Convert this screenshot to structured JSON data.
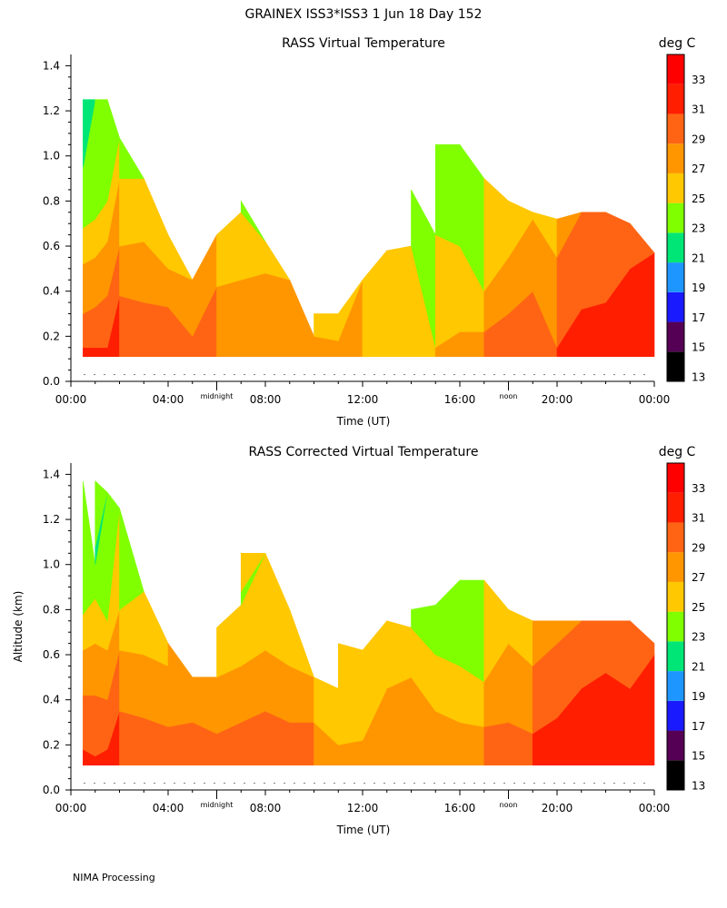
{
  "header": {
    "title": "GRAINEX ISS3*ISS3    1 Jun 18 Day 152"
  },
  "footer": {
    "text": "NIMA Processing"
  },
  "colorbar": {
    "unit_label": "deg C",
    "ticks": [
      "33",
      "31",
      "29",
      "27",
      "25",
      "23",
      "21",
      "19",
      "17",
      "15",
      "13"
    ],
    "colors": [
      "#000000",
      "#550055",
      "#1a1aff",
      "#1e96ff",
      "#00e676",
      "#7fff00",
      "#ffc800",
      "#ff9600",
      "#ff6414",
      "#ff1e00",
      "#ff0000"
    ]
  },
  "axes": {
    "x_ticks": [
      "00:00",
      "04:00",
      "08:00",
      "12:00",
      "16:00",
      "20:00",
      "00:00"
    ],
    "x_label": "Time (UT)",
    "y_ticks": [
      "1.4",
      "1.2",
      "1.0",
      "0.8",
      "0.6",
      "0.4",
      "0.2",
      "0.0"
    ],
    "y_label": "Altitude (km)",
    "markers": [
      "midnight",
      "noon"
    ]
  },
  "chart_data": [
    {
      "type": "heatmap",
      "title": "RASS Virtual Temperature",
      "xlabel": "Time (UT)",
      "ylabel": "",
      "xlim": [
        0,
        24
      ],
      "ylim": [
        0,
        1.45
      ],
      "x_unit": "hours UT",
      "colorbar_unit": "deg C",
      "levels": [
        13,
        15,
        17,
        19,
        21,
        23,
        25,
        27,
        29,
        31,
        33,
        35
      ],
      "profiles": [
        {
          "t": 0.5,
          "top": 1.25,
          "layers": [
            [
              0.15,
              31
            ],
            [
              0.3,
              29
            ],
            [
              0.52,
              27
            ],
            [
              0.68,
              25
            ],
            [
              0.95,
              23
            ],
            [
              1.25,
              21
            ]
          ]
        },
        {
          "t": 1.0,
          "top": 1.25,
          "layers": [
            [
              0.15,
              31
            ],
            [
              0.33,
              29
            ],
            [
              0.55,
              27
            ],
            [
              0.72,
              25
            ],
            [
              1.25,
              23
            ]
          ]
        },
        {
          "t": 1.5,
          "top": 1.25,
          "layers": [
            [
              0.15,
              31
            ],
            [
              0.38,
              29
            ],
            [
              0.62,
              27
            ],
            [
              0.8,
              25
            ],
            [
              1.25,
              23
            ]
          ]
        },
        {
          "t": 2.0,
          "top": 1.08,
          "layers": [
            [
              0.38,
              29
            ],
            [
              0.6,
              27
            ],
            [
              0.9,
              25
            ],
            [
              1.08,
              23
            ]
          ]
        },
        {
          "t": 3.0,
          "top": 0.9,
          "layers": [
            [
              0.35,
              29
            ],
            [
              0.62,
              27
            ],
            [
              0.9,
              25
            ]
          ]
        },
        {
          "t": 4.0,
          "top": 0.65,
          "layers": [
            [
              0.33,
              29
            ],
            [
              0.5,
              27
            ],
            [
              0.65,
              25
            ]
          ]
        },
        {
          "t": 5.0,
          "top": 0.45,
          "layers": [
            [
              0.2,
              29
            ],
            [
              0.45,
              27
            ]
          ]
        },
        {
          "t": 6.0,
          "top": 0.65,
          "layers": [
            [
              0.42,
              27
            ],
            [
              0.65,
              25
            ]
          ]
        },
        {
          "t": 7.0,
          "top": 0.8,
          "layers": [
            [
              0.45,
              27
            ],
            [
              0.75,
              25
            ],
            [
              0.8,
              23
            ]
          ]
        },
        {
          "t": 8.0,
          "top": 0.62,
          "layers": [
            [
              0.48,
              27
            ],
            [
              0.62,
              25
            ]
          ]
        },
        {
          "t": 9.0,
          "top": 0.45,
          "layers": [
            [
              0.45,
              27
            ]
          ]
        },
        {
          "t": 10.0,
          "top": 0.3,
          "layers": [
            [
              0.2,
              27
            ],
            [
              0.3,
              25
            ]
          ]
        },
        {
          "t": 11.0,
          "top": 0.3,
          "layers": [
            [
              0.18,
              27
            ],
            [
              0.3,
              25
            ]
          ]
        },
        {
          "t": 12.0,
          "top": 0.45,
          "layers": [
            [
              0.45,
              25
            ]
          ]
        },
        {
          "t": 13.0,
          "top": 0.58,
          "layers": [
            [
              0.58,
              25
            ]
          ]
        },
        {
          "t": 14.0,
          "top": 0.85,
          "layers": [
            [
              0.6,
              25
            ],
            [
              0.85,
              23
            ]
          ]
        },
        {
          "t": 15.0,
          "top": 1.05,
          "layers": [
            [
              0.15,
              27
            ],
            [
              0.65,
              25
            ],
            [
              1.05,
              23
            ]
          ]
        },
        {
          "t": 16.0,
          "top": 1.05,
          "layers": [
            [
              0.22,
              27
            ],
            [
              0.6,
              25
            ],
            [
              1.05,
              23
            ]
          ]
        },
        {
          "t": 17.0,
          "top": 0.9,
          "layers": [
            [
              0.22,
              29
            ],
            [
              0.4,
              27
            ],
            [
              0.9,
              25
            ]
          ]
        },
        {
          "t": 18.0,
          "top": 0.8,
          "layers": [
            [
              0.3,
              29
            ],
            [
              0.55,
              27
            ],
            [
              0.8,
              25
            ]
          ]
        },
        {
          "t": 19.0,
          "top": 0.75,
          "layers": [
            [
              0.4,
              29
            ],
            [
              0.72,
              27
            ],
            [
              0.75,
              25
            ]
          ]
        },
        {
          "t": 20.0,
          "top": 0.72,
          "layers": [
            [
              0.15,
              31
            ],
            [
              0.55,
              29
            ],
            [
              0.72,
              27
            ]
          ]
        },
        {
          "t": 21.0,
          "top": 0.75,
          "layers": [
            [
              0.32,
              31
            ],
            [
              0.75,
              29
            ]
          ]
        },
        {
          "t": 22.0,
          "top": 0.75,
          "layers": [
            [
              0.35,
              31
            ],
            [
              0.75,
              29
            ]
          ]
        },
        {
          "t": 23.0,
          "top": 0.7,
          "layers": [
            [
              0.5,
              31
            ],
            [
              0.7,
              29
            ]
          ]
        },
        {
          "t": 24.0,
          "top": 0.57,
          "layers": [
            [
              0.57,
              31
            ]
          ]
        }
      ]
    },
    {
      "type": "heatmap",
      "title": "RASS Corrected Virtual Temperature",
      "xlabel": "Time (UT)",
      "ylabel": "Altitude (km)",
      "xlim": [
        0,
        24
      ],
      "ylim": [
        0,
        1.45
      ],
      "x_unit": "hours UT",
      "colorbar_unit": "deg C",
      "levels": [
        13,
        15,
        17,
        19,
        21,
        23,
        25,
        27,
        29,
        31,
        33,
        35
      ],
      "profiles": [
        {
          "t": 0.5,
          "top": 1.37,
          "layers": [
            [
              0.18,
              31
            ],
            [
              0.42,
              29
            ],
            [
              0.62,
              27
            ],
            [
              0.78,
              25
            ],
            [
              1.37,
              23
            ]
          ]
        },
        {
          "t": 1.0,
          "top": 1.37,
          "layers": [
            [
              0.15,
              31
            ],
            [
              0.42,
              29
            ],
            [
              0.65,
              27
            ],
            [
              0.85,
              25
            ],
            [
              1.0,
              23
            ],
            [
              1.08,
              21
            ],
            [
              1.37,
              23
            ]
          ]
        },
        {
          "t": 1.5,
          "top": 1.32,
          "layers": [
            [
              0.18,
              31
            ],
            [
              0.4,
              29
            ],
            [
              0.62,
              27
            ],
            [
              0.75,
              25
            ],
            [
              1.32,
              23
            ]
          ]
        },
        {
          "t": 2.0,
          "top": 1.25,
          "layers": [
            [
              0.35,
              29
            ],
            [
              0.62,
              27
            ],
            [
              0.8,
              25
            ],
            [
              1.25,
              23
            ]
          ]
        },
        {
          "t": 3.0,
          "top": 0.88,
          "layers": [
            [
              0.32,
              29
            ],
            [
              0.6,
              27
            ],
            [
              0.88,
              25
            ]
          ]
        },
        {
          "t": 4.0,
          "top": 0.65,
          "layers": [
            [
              0.28,
              29
            ],
            [
              0.55,
              27
            ],
            [
              0.65,
              27
            ]
          ]
        },
        {
          "t": 5.0,
          "top": 0.5,
          "layers": [
            [
              0.3,
              29
            ],
            [
              0.5,
              27
            ]
          ]
        },
        {
          "t": 6.0,
          "top": 0.72,
          "layers": [
            [
              0.25,
              29
            ],
            [
              0.5,
              27
            ],
            [
              0.72,
              25
            ]
          ]
        },
        {
          "t": 7.0,
          "top": 1.05,
          "layers": [
            [
              0.3,
              29
            ],
            [
              0.55,
              27
            ],
            [
              0.82,
              25
            ],
            [
              0.88,
              23
            ],
            [
              1.05,
              25
            ]
          ]
        },
        {
          "t": 8.0,
          "top": 1.05,
          "layers": [
            [
              0.35,
              29
            ],
            [
              0.62,
              27
            ],
            [
              1.05,
              25
            ]
          ]
        },
        {
          "t": 9.0,
          "top": 0.8,
          "layers": [
            [
              0.3,
              29
            ],
            [
              0.55,
              27
            ],
            [
              0.8,
              25
            ]
          ]
        },
        {
          "t": 10.0,
          "top": 0.5,
          "layers": [
            [
              0.3,
              27
            ],
            [
              0.5,
              25
            ]
          ]
        },
        {
          "t": 11.0,
          "top": 0.65,
          "layers": [
            [
              0.2,
              27
            ],
            [
              0.45,
              25
            ],
            [
              0.65,
              25
            ]
          ]
        },
        {
          "t": 12.0,
          "top": 0.62,
          "layers": [
            [
              0.22,
              27
            ],
            [
              0.62,
              25
            ]
          ]
        },
        {
          "t": 13.0,
          "top": 0.75,
          "layers": [
            [
              0.45,
              27
            ],
            [
              0.75,
              25
            ]
          ]
        },
        {
          "t": 14.0,
          "top": 0.8,
          "layers": [
            [
              0.5,
              27
            ],
            [
              0.72,
              25
            ],
            [
              0.8,
              23
            ]
          ]
        },
        {
          "t": 15.0,
          "top": 0.82,
          "layers": [
            [
              0.35,
              27
            ],
            [
              0.6,
              25
            ],
            [
              0.82,
              23
            ]
          ]
        },
        {
          "t": 16.0,
          "top": 0.93,
          "layers": [
            [
              0.3,
              27
            ],
            [
              0.55,
              25
            ],
            [
              0.93,
              23
            ]
          ]
        },
        {
          "t": 17.0,
          "top": 0.93,
          "layers": [
            [
              0.28,
              29
            ],
            [
              0.48,
              27
            ],
            [
              0.93,
              25
            ]
          ]
        },
        {
          "t": 18.0,
          "top": 0.8,
          "layers": [
            [
              0.3,
              29
            ],
            [
              0.65,
              27
            ],
            [
              0.8,
              25
            ]
          ]
        },
        {
          "t": 19.0,
          "top": 0.75,
          "layers": [
            [
              0.25,
              31
            ],
            [
              0.55,
              29
            ],
            [
              0.75,
              27
            ]
          ]
        },
        {
          "t": 20.0,
          "top": 0.75,
          "layers": [
            [
              0.32,
              31
            ],
            [
              0.65,
              29
            ],
            [
              0.75,
              27
            ]
          ]
        },
        {
          "t": 21.0,
          "top": 0.75,
          "layers": [
            [
              0.45,
              31
            ],
            [
              0.75,
              29
            ]
          ]
        },
        {
          "t": 22.0,
          "top": 0.75,
          "layers": [
            [
              0.52,
              31
            ],
            [
              0.75,
              29
            ]
          ]
        },
        {
          "t": 23.0,
          "top": 0.75,
          "layers": [
            [
              0.45,
              31
            ],
            [
              0.75,
              29
            ]
          ]
        },
        {
          "t": 24.0,
          "top": 0.65,
          "layers": [
            [
              0.6,
              31
            ],
            [
              0.65,
              29
            ]
          ]
        }
      ]
    }
  ]
}
